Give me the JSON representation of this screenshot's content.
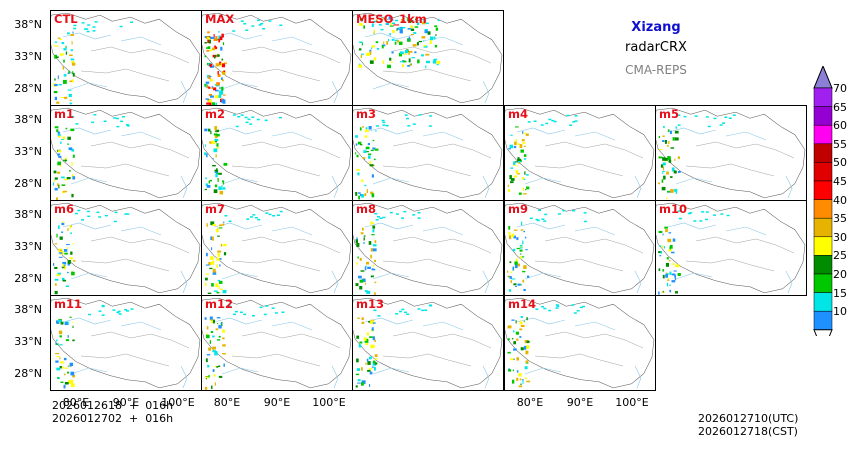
{
  "title": {
    "region": "Xizang",
    "product": "radarCRX",
    "model": "CMA-REPS"
  },
  "panels": [
    "CTL",
    "MAX",
    "MESO_1km",
    "m1",
    "m2",
    "m3",
    "m4",
    "m5",
    "m6",
    "m7",
    "m8",
    "m9",
    "m10",
    "m11",
    "m12",
    "m13",
    "m14"
  ],
  "lat_ticks": [
    "38°N",
    "33°N",
    "28°N"
  ],
  "lon_ticks": [
    "80°E",
    "90°E",
    "100°E"
  ],
  "init_time": {
    "utc": "2026012618  +  016h",
    "cst": "2026012702  +  016h"
  },
  "valid_time": {
    "utc": "2026012710(UTC)",
    "cst": "2026012718(CST)"
  },
  "colorbar": {
    "ticks": [
      "70",
      "65",
      "60",
      "55",
      "50",
      "45",
      "40",
      "35",
      "30",
      "25",
      "20",
      "15",
      "10"
    ],
    "colors": [
      "#a020f0",
      "#9400d3",
      "#ff00f0",
      "#c00000",
      "#e00000",
      "#ff0000",
      "#ff8c00",
      "#e6b400",
      "#ffff00",
      "#008c00",
      "#00c800",
      "#00e6e6",
      "#1e90ff",
      "#ffffff",
      "#8b7fd8"
    ]
  }
}
